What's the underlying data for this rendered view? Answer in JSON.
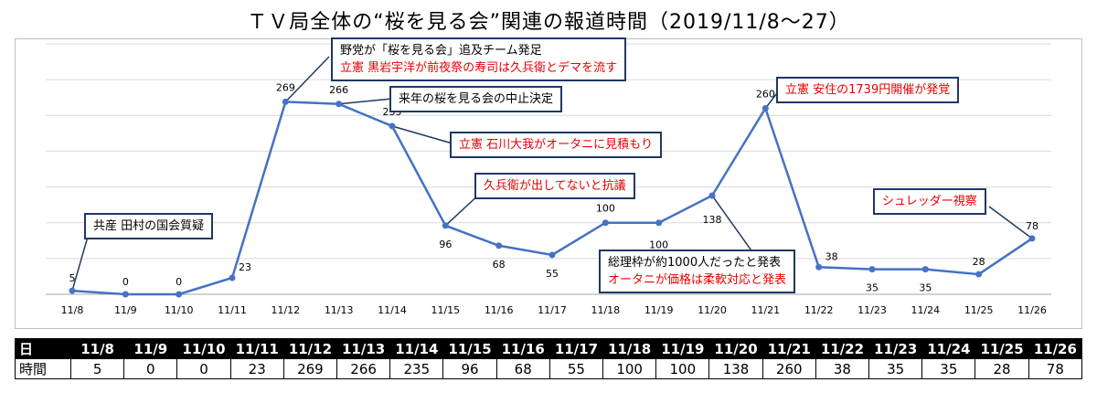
{
  "chart_data": {
    "type": "line",
    "title": "ＴＶ局全体の“桜を見る会”関連の報道時間（2019/11/8～27）",
    "categories": [
      "11/8",
      "11/9",
      "11/10",
      "11/11",
      "11/12",
      "11/13",
      "11/14",
      "11/15",
      "11/16",
      "11/17",
      "11/18",
      "11/19",
      "11/20",
      "11/21",
      "11/22",
      "11/23",
      "11/24",
      "11/25",
      "11/26"
    ],
    "values": [
      5,
      0,
      0,
      23,
      269,
      266,
      235,
      96,
      68,
      55,
      100,
      100,
      138,
      260,
      38,
      35,
      35,
      28,
      78
    ],
    "ylim": [
      0,
      350
    ],
    "grid": true,
    "series_color": "#4472c4",
    "annotations": [
      {
        "lines": [
          {
            "text": "共産 田村の国会質疑",
            "color": "#000000"
          }
        ],
        "category": "11/8"
      },
      {
        "lines": [
          {
            "text": "野党が「桜を見る会」追及チーム発足",
            "color": "#000000"
          },
          {
            "text": "立憲 黒岩宇洋が前夜祭の寿司は久兵衛とデマを流す",
            "color": "#e60000"
          }
        ],
        "category": "11/12"
      },
      {
        "lines": [
          {
            "text": "来年の桜を見る会の中止決定",
            "color": "#000000"
          }
        ],
        "category": "11/13"
      },
      {
        "lines": [
          {
            "text": "立憲 石川大我がオータニに見積もり",
            "color": "#e60000"
          }
        ],
        "category": "11/14"
      },
      {
        "lines": [
          {
            "text": "久兵衛が出してないと抗議",
            "color": "#e60000"
          }
        ],
        "category": "11/15"
      },
      {
        "lines": [
          {
            "text": "総理枠が約1000人だったと発表",
            "color": "#000000"
          },
          {
            "text": "オータニが価格は柔軟対応と発表",
            "color": "#e60000"
          }
        ],
        "category": "11/20"
      },
      {
        "lines": [
          {
            "text": "立憲 安住の1739円開催が発覚",
            "color": "#e60000"
          }
        ],
        "category": "11/21"
      },
      {
        "lines": [
          {
            "text": "シュレッダー視察",
            "color": "#e60000"
          }
        ],
        "category": "11/26"
      }
    ]
  },
  "table": {
    "header_label": "日",
    "row_label": "時間",
    "dates": [
      "11/8",
      "11/9",
      "11/10",
      "11/11",
      "11/12",
      "11/13",
      "11/14",
      "11/15",
      "11/16",
      "11/17",
      "11/18",
      "11/19",
      "11/20",
      "11/21",
      "11/22",
      "11/23",
      "11/24",
      "11/25",
      "11/26"
    ],
    "values": [
      "5",
      "0",
      "0",
      "23",
      "269",
      "266",
      "235",
      "96",
      "68",
      "55",
      "100",
      "100",
      "138",
      "260",
      "38",
      "35",
      "35",
      "28",
      "78"
    ]
  }
}
